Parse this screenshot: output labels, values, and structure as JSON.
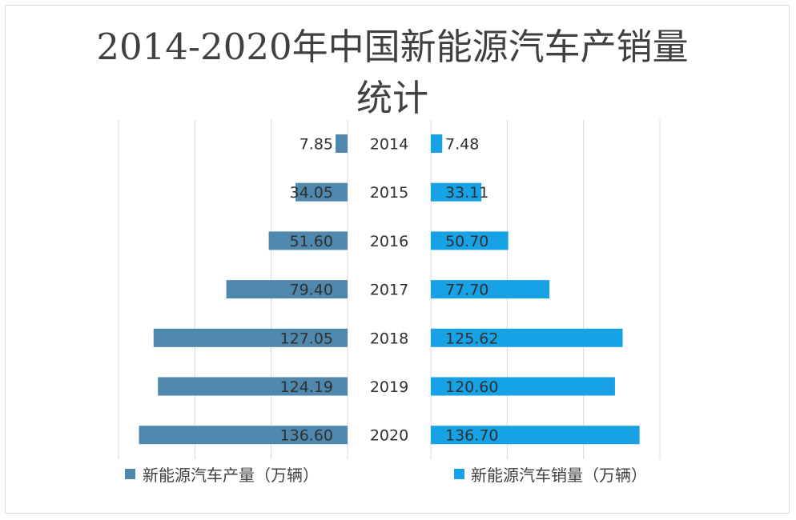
{
  "chart_data": {
    "type": "bar",
    "orientation": "horizontal-butterfly",
    "title": "2014-2020年中国新能源汽车产销量",
    "title_line2": "统计",
    "categories": [
      "2014",
      "2015",
      "2016",
      "2017",
      "2018",
      "2019",
      "2020"
    ],
    "series": [
      {
        "name": "新能源汽车产量（万辆）",
        "side": "left",
        "color": "#4f87ad",
        "values": [
          7.85,
          34.05,
          51.6,
          79.4,
          127.05,
          124.19,
          136.6
        ],
        "labels": [
          "7.85",
          "34.05",
          "51.60",
          "79.40",
          "127.05",
          "124.19",
          "136.60"
        ]
      },
      {
        "name": "新能源汽车销量（万辆）",
        "side": "right",
        "color": "#17a2e5",
        "values": [
          7.48,
          33.11,
          50.7,
          77.7,
          125.62,
          120.6,
          136.7
        ],
        "labels": [
          "7.48",
          "33.11",
          "50.70",
          "77.70",
          "125.62",
          "120.60",
          "136.70"
        ]
      }
    ],
    "xlim": [
      0,
      150
    ],
    "grid": true,
    "legend_position": "bottom"
  }
}
